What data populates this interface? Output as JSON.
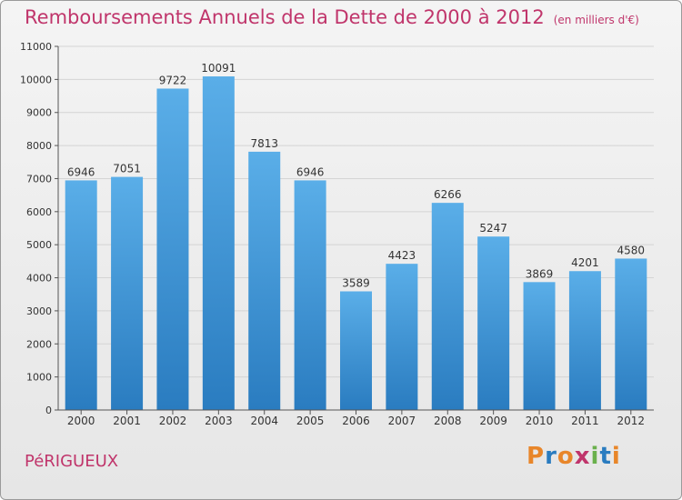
{
  "header": {
    "title": "Remboursements Annuels de la Dette de 2000 à 2012",
    "subtitle": "(en milliers d'€)"
  },
  "footer": {
    "city": "PéRIGUEUX",
    "logo_text": "Proxiti"
  },
  "colors": {
    "title": "#c0356b",
    "bar_top": "#5aaee8",
    "bar_bottom": "#2a7cc0",
    "logo": [
      "#e8862a",
      "#2a7cc0",
      "#e8862a",
      "#c0356b",
      "#6ab04c",
      "#2a7cc0",
      "#e8862a"
    ]
  },
  "chart_data": {
    "type": "bar",
    "title": "Remboursements Annuels de la Dette de 2000 à 2012",
    "xlabel": "",
    "ylabel": "",
    "categories": [
      "2000",
      "2001",
      "2002",
      "2003",
      "2004",
      "2005",
      "2006",
      "2007",
      "2008",
      "2009",
      "2010",
      "2011",
      "2012"
    ],
    "values": [
      6946,
      7051,
      9722,
      10091,
      7813,
      6946,
      3589,
      4423,
      6266,
      5247,
      3869,
      4201,
      4580
    ],
    "ylim": [
      0,
      11000
    ],
    "yticks": [
      0,
      1000,
      2000,
      3000,
      4000,
      5000,
      6000,
      7000,
      8000,
      9000,
      10000,
      11000
    ],
    "grid": true,
    "data_labels": true
  }
}
